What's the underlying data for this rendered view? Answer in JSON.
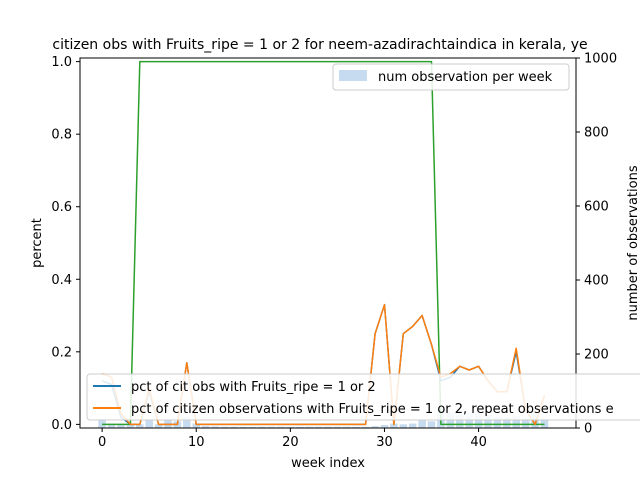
{
  "chart_data": {
    "type": "line",
    "title": "citizen obs with Fruits_ripe = 1 or 2 for neem-azadirachtaindica in kerala, ye",
    "xlabel": "week index",
    "ylabel": "percent",
    "ylabel_right": "number of observations",
    "xlim": [
      -2.35,
      50.35
    ],
    "ylim": [
      -0.01,
      1.01
    ],
    "ylim_right": [
      0,
      1000
    ],
    "x_ticks": [
      0,
      10,
      20,
      30,
      40
    ],
    "x_tick_labels": [
      "0",
      "10",
      "20",
      "30",
      "40"
    ],
    "y_ticks": [
      0.0,
      0.2,
      0.4,
      0.6,
      0.8,
      1.0
    ],
    "y_tick_labels": [
      "0.0",
      "0.2",
      "0.4",
      "0.6",
      "0.8",
      "1.0"
    ],
    "y_right_ticks": [
      0,
      200,
      400,
      600,
      800,
      1000
    ],
    "y_right_tick_labels": [
      "0",
      "200",
      "400",
      "600",
      "800",
      "1000"
    ],
    "weeks": [
      0,
      1,
      2,
      3,
      4,
      5,
      6,
      7,
      8,
      9,
      10,
      11,
      12,
      13,
      14,
      15,
      16,
      17,
      18,
      19,
      20,
      21,
      22,
      23,
      24,
      25,
      26,
      27,
      28,
      29,
      30,
      31,
      32,
      33,
      34,
      35,
      36,
      37,
      38,
      39,
      40,
      41,
      42,
      43,
      44,
      45,
      46,
      47
    ],
    "bar_series": {
      "name": "num observation per week",
      "color": "#c6dbef",
      "values": [
        25,
        12,
        10,
        8,
        10,
        22,
        10,
        22,
        18,
        30,
        12,
        5,
        4,
        3,
        3,
        3,
        3,
        3,
        3,
        3,
        3,
        3,
        3,
        3,
        3,
        3,
        3,
        3,
        3,
        5,
        8,
        12,
        10,
        12,
        20,
        18,
        50,
        42,
        38,
        40,
        42,
        35,
        30,
        28,
        32,
        25,
        38,
        25
      ]
    },
    "series": [
      {
        "name": "pct of cit obs with Fruits_ripe = 1 or 2",
        "color": "#1f77b4",
        "values": [
          0.12,
          0.11,
          0.02,
          0.0,
          0.0,
          0.09,
          0.0,
          0.0,
          0.0,
          0.17,
          0.0,
          0.0,
          0.0,
          0.0,
          0.0,
          0.0,
          0.0,
          0.0,
          0.0,
          0.0,
          0.0,
          0.0,
          0.0,
          0.0,
          0.0,
          0.0,
          0.0,
          0.0,
          0.0,
          0.25,
          0.33,
          0.0,
          0.25,
          0.27,
          0.3,
          0.22,
          0.12,
          0.13,
          0.16,
          0.15,
          0.16,
          0.12,
          0.09,
          0.09,
          0.2,
          0.04,
          0.0,
          0.08
        ]
      },
      {
        "name": "pct of citizen observations with Fruits_ripe = 1 or 2, repeat observations e",
        "color": "#ff7f0e",
        "values": [
          0.14,
          0.13,
          0.03,
          0.0,
          0.0,
          0.1,
          0.0,
          0.0,
          0.0,
          0.17,
          0.0,
          0.0,
          0.0,
          0.0,
          0.0,
          0.0,
          0.0,
          0.0,
          0.0,
          0.0,
          0.0,
          0.0,
          0.0,
          0.0,
          0.0,
          0.0,
          0.0,
          0.0,
          0.0,
          0.25,
          0.33,
          0.0,
          0.25,
          0.27,
          0.3,
          0.22,
          0.13,
          0.14,
          0.16,
          0.15,
          0.16,
          0.12,
          0.09,
          0.09,
          0.21,
          0.04,
          0.0,
          0.08
        ]
      },
      {
        "color": "#2ca02c",
        "values": [
          0,
          0,
          0,
          0,
          1,
          1,
          1,
          1,
          1,
          1,
          1,
          1,
          1,
          1,
          1,
          1,
          1,
          1,
          1,
          1,
          1,
          1,
          1,
          1,
          1,
          1,
          1,
          1,
          1,
          1,
          1,
          1,
          1,
          1,
          1,
          1,
          0,
          0,
          0,
          0,
          0,
          0,
          0,
          0,
          0,
          0,
          0,
          0
        ]
      }
    ],
    "legend_placement": "lower-left and upper-right",
    "grid": false
  }
}
